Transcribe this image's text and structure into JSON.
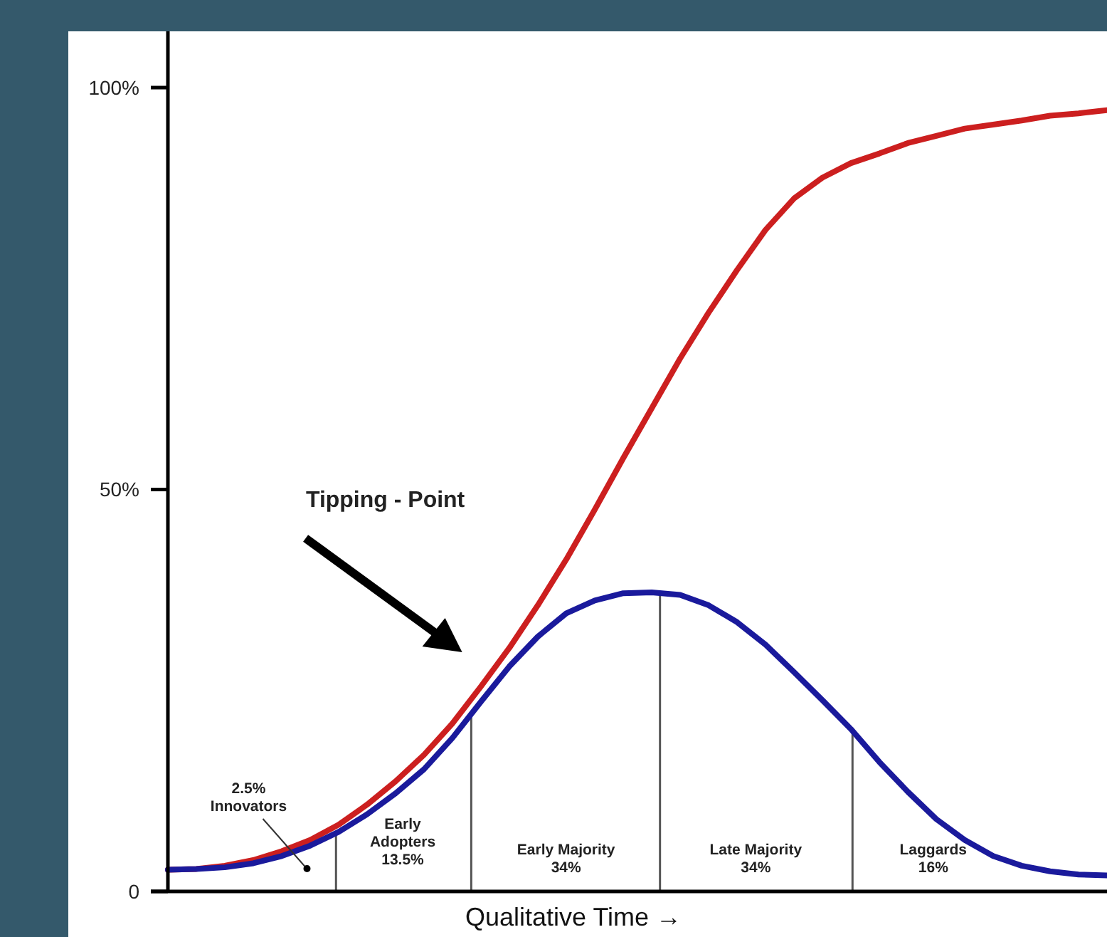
{
  "chart_data": {
    "type": "line",
    "xlabel": "Qualitative Time →",
    "categories": [
      null,
      null,
      null,
      null,
      null,
      null,
      null,
      null,
      null,
      null,
      null,
      null,
      null,
      null,
      null,
      null,
      null,
      null,
      null,
      null,
      null,
      null,
      null,
      null,
      null,
      null,
      null,
      null,
      null,
      null,
      null,
      null,
      null,
      null
    ],
    "ylim": [
      0,
      107
    ],
    "yticks": [
      {
        "value": 0,
        "label": "0"
      },
      {
        "value": 50,
        "label": "50%"
      },
      {
        "value": 100,
        "label": "100%"
      }
    ],
    "grid": false,
    "marker": "none",
    "line_style": "solid",
    "series": [
      {
        "color": "#cc1f1f",
        "values": [
          2.7,
          2.8,
          3.2,
          3.9,
          5.0,
          6.4,
          8.3,
          10.8,
          13.7,
          17.0,
          20.9,
          25.5,
          30.3,
          35.6,
          41.3,
          47.5,
          53.9,
          60.1,
          66.3,
          72.0,
          77.3,
          82.3,
          86.2,
          88.8,
          90.6,
          91.8,
          93.1,
          94.0,
          94.9,
          95.4,
          95.9,
          96.5,
          96.8,
          97.2
        ]
      },
      {
        "color": "#1a1a9c",
        "values": [
          2.7,
          2.8,
          3.0,
          3.5,
          4.4,
          5.7,
          7.4,
          9.6,
          12.2,
          15.2,
          19.1,
          23.6,
          28.0,
          31.7,
          34.6,
          36.2,
          37.1,
          37.2,
          36.9,
          35.6,
          33.5,
          30.7,
          27.3,
          23.8,
          20.2,
          16.1,
          12.4,
          9.0,
          6.4,
          4.4,
          3.2,
          2.5,
          2.1,
          2.0
        ]
      }
    ],
    "annotations": [
      "Tipping - Point",
      "2.5%\nInnovators",
      "Early\nAdopters\n13.5%",
      "Early Majority\n34%",
      "Late Majority\n34%",
      "Laggards\n16%"
    ]
  }
}
